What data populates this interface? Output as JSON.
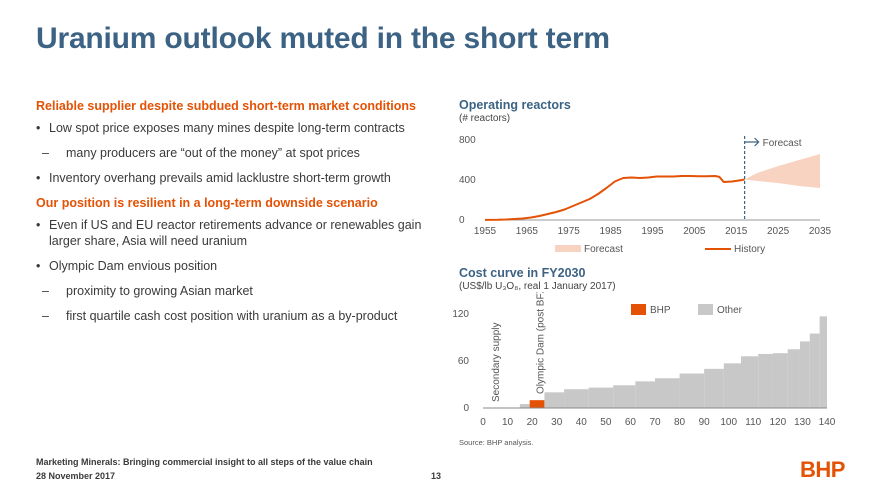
{
  "slide": {
    "title": "Uranium outlook muted in the short term",
    "footer_line1": "Marketing Minerals: Bringing commercial insight to all steps of the value chain",
    "footer_line2": "28 November 2017",
    "page_number": "13",
    "logo_text": "BHP",
    "source": "Source:   BHP analysis."
  },
  "left": {
    "heading1": "Reliable supplier despite subdued short-term market conditions",
    "bullet1": "Low spot price exposes many mines despite long-term contracts",
    "sub1": "many producers are “out of the money” at spot prices",
    "bullet2": "Inventory overhang prevails amid lacklustre short-term growth",
    "heading2": "Our position is resilient in a long-term downside scenario",
    "bullet3": "Even if US and EU reactor retirements advance or renewables gain larger share, Asia will need uranium",
    "bullet4": "Olympic Dam envious position",
    "sub2": "proximity to growing Asian market",
    "sub3": "first quartile cash cost position with uranium as a by-product"
  },
  "colors": {
    "orange": "#e35205",
    "forecast_fill": "#f9d3c2",
    "grey": "#c8c8c8",
    "title_blue": "#3d6384"
  },
  "chart_data": [
    {
      "type": "line",
      "title": "Operating reactors",
      "ylabel": "(# reactors)",
      "ylim": [
        0,
        800
      ],
      "yticks": [
        0,
        400,
        800
      ],
      "xlim": [
        1955,
        2035
      ],
      "xticks": [
        1955,
        1965,
        1975,
        1985,
        1995,
        2005,
        2015,
        2025,
        2035
      ],
      "forecast_start": 2017,
      "forecast_label": "Forecast",
      "legend": [
        "Forecast",
        "History"
      ],
      "series": [
        {
          "name": "History",
          "x": [
            1955,
            1958,
            1960,
            1962,
            1964,
            1966,
            1968,
            1970,
            1972,
            1974,
            1976,
            1978,
            1980,
            1982,
            1984,
            1986,
            1988,
            1990,
            1992,
            1994,
            1996,
            1998,
            2000,
            2002,
            2004,
            2006,
            2008,
            2010,
            2011,
            2012,
            2014,
            2016,
            2017
          ],
          "values": [
            1,
            2,
            5,
            10,
            15,
            25,
            40,
            60,
            80,
            105,
            140,
            175,
            210,
            260,
            320,
            385,
            420,
            425,
            420,
            425,
            435,
            435,
            435,
            440,
            440,
            437,
            438,
            440,
            430,
            380,
            385,
            398,
            405
          ]
        },
        {
          "name": "Forecast",
          "x": [
            2017,
            2020,
            2025,
            2030,
            2035
          ],
          "low": [
            405,
            390,
            370,
            340,
            320
          ],
          "high": [
            405,
            470,
            540,
            600,
            660
          ]
        }
      ]
    },
    {
      "type": "bar",
      "title": "Cost curve in FY2030",
      "ylabel": "(US$/lb U₃O₈, real 1 January 2017)",
      "ylim": [
        0,
        120
      ],
      "yticks": [
        0,
        60,
        120
      ],
      "xlim": [
        0,
        140
      ],
      "xticks": [
        0,
        10,
        20,
        30,
        40,
        50,
        60,
        70,
        80,
        90,
        100,
        110,
        120,
        130,
        140
      ],
      "legend": [
        "BHP",
        "Other"
      ],
      "annotations": [
        "Secondary supply",
        "Olympic Dam (post BFX)"
      ],
      "secondary_supply": {
        "x_start": 0,
        "x_end": 20,
        "value": 0
      },
      "segments": [
        {
          "name": "Other",
          "x_start": 15,
          "x_end": 19,
          "value": 5
        },
        {
          "name": "BHP",
          "x_start": 19,
          "x_end": 25,
          "value": 10
        },
        {
          "name": "Other",
          "x_start": 25,
          "x_end": 33,
          "value": 20
        },
        {
          "name": "Other",
          "x_start": 33,
          "x_end": 43,
          "value": 24
        },
        {
          "name": "Other",
          "x_start": 43,
          "x_end": 53,
          "value": 26
        },
        {
          "name": "Other",
          "x_start": 53,
          "x_end": 62,
          "value": 29
        },
        {
          "name": "Other",
          "x_start": 62,
          "x_end": 70,
          "value": 34
        },
        {
          "name": "Other",
          "x_start": 70,
          "x_end": 80,
          "value": 38
        },
        {
          "name": "Other",
          "x_start": 80,
          "x_end": 90,
          "value": 44
        },
        {
          "name": "Other",
          "x_start": 90,
          "x_end": 98,
          "value": 50
        },
        {
          "name": "Other",
          "x_start": 98,
          "x_end": 105,
          "value": 57
        },
        {
          "name": "Other",
          "x_start": 105,
          "x_end": 112,
          "value": 66
        },
        {
          "name": "Other",
          "x_start": 112,
          "x_end": 118,
          "value": 69
        },
        {
          "name": "Other",
          "x_start": 118,
          "x_end": 124,
          "value": 70
        },
        {
          "name": "Other",
          "x_start": 124,
          "x_end": 129,
          "value": 75
        },
        {
          "name": "Other",
          "x_start": 129,
          "x_end": 133,
          "value": 85
        },
        {
          "name": "Other",
          "x_start": 133,
          "x_end": 137,
          "value": 95
        },
        {
          "name": "Other",
          "x_start": 137,
          "x_end": 140,
          "value": 117
        }
      ]
    }
  ]
}
